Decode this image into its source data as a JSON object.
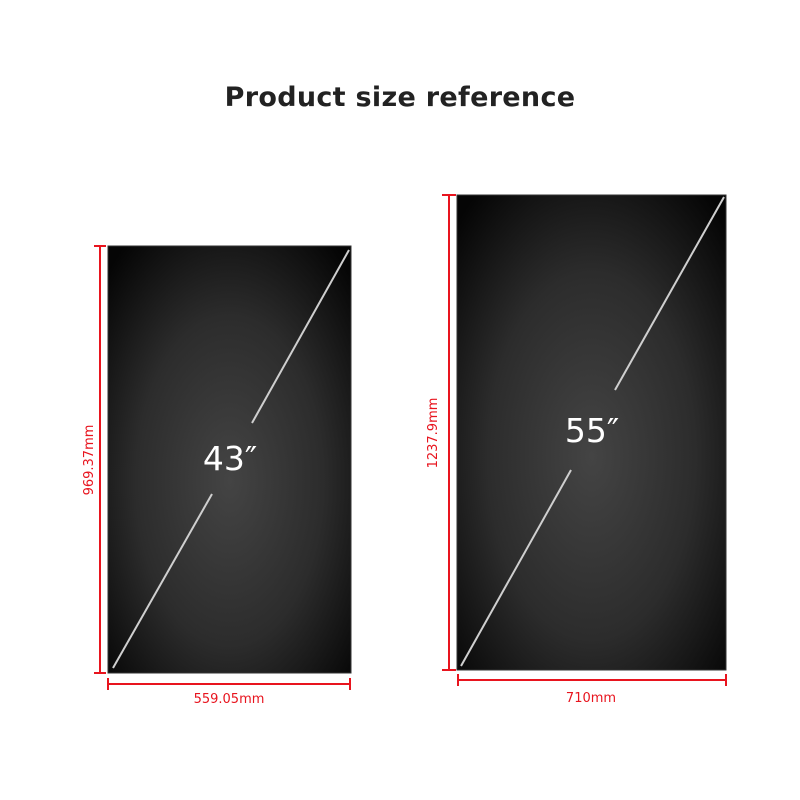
{
  "title": "Product size reference",
  "colors": {
    "dimension": "#e8141e",
    "screen": "#1a1a1a",
    "diagonal": "#cfcfcf"
  },
  "products": [
    {
      "size_label": "43″",
      "width_label": "559.05mm",
      "height_label": "969.37mm"
    },
    {
      "size_label": "55″",
      "width_label": "710mm",
      "height_label": "1237.9mm"
    }
  ]
}
